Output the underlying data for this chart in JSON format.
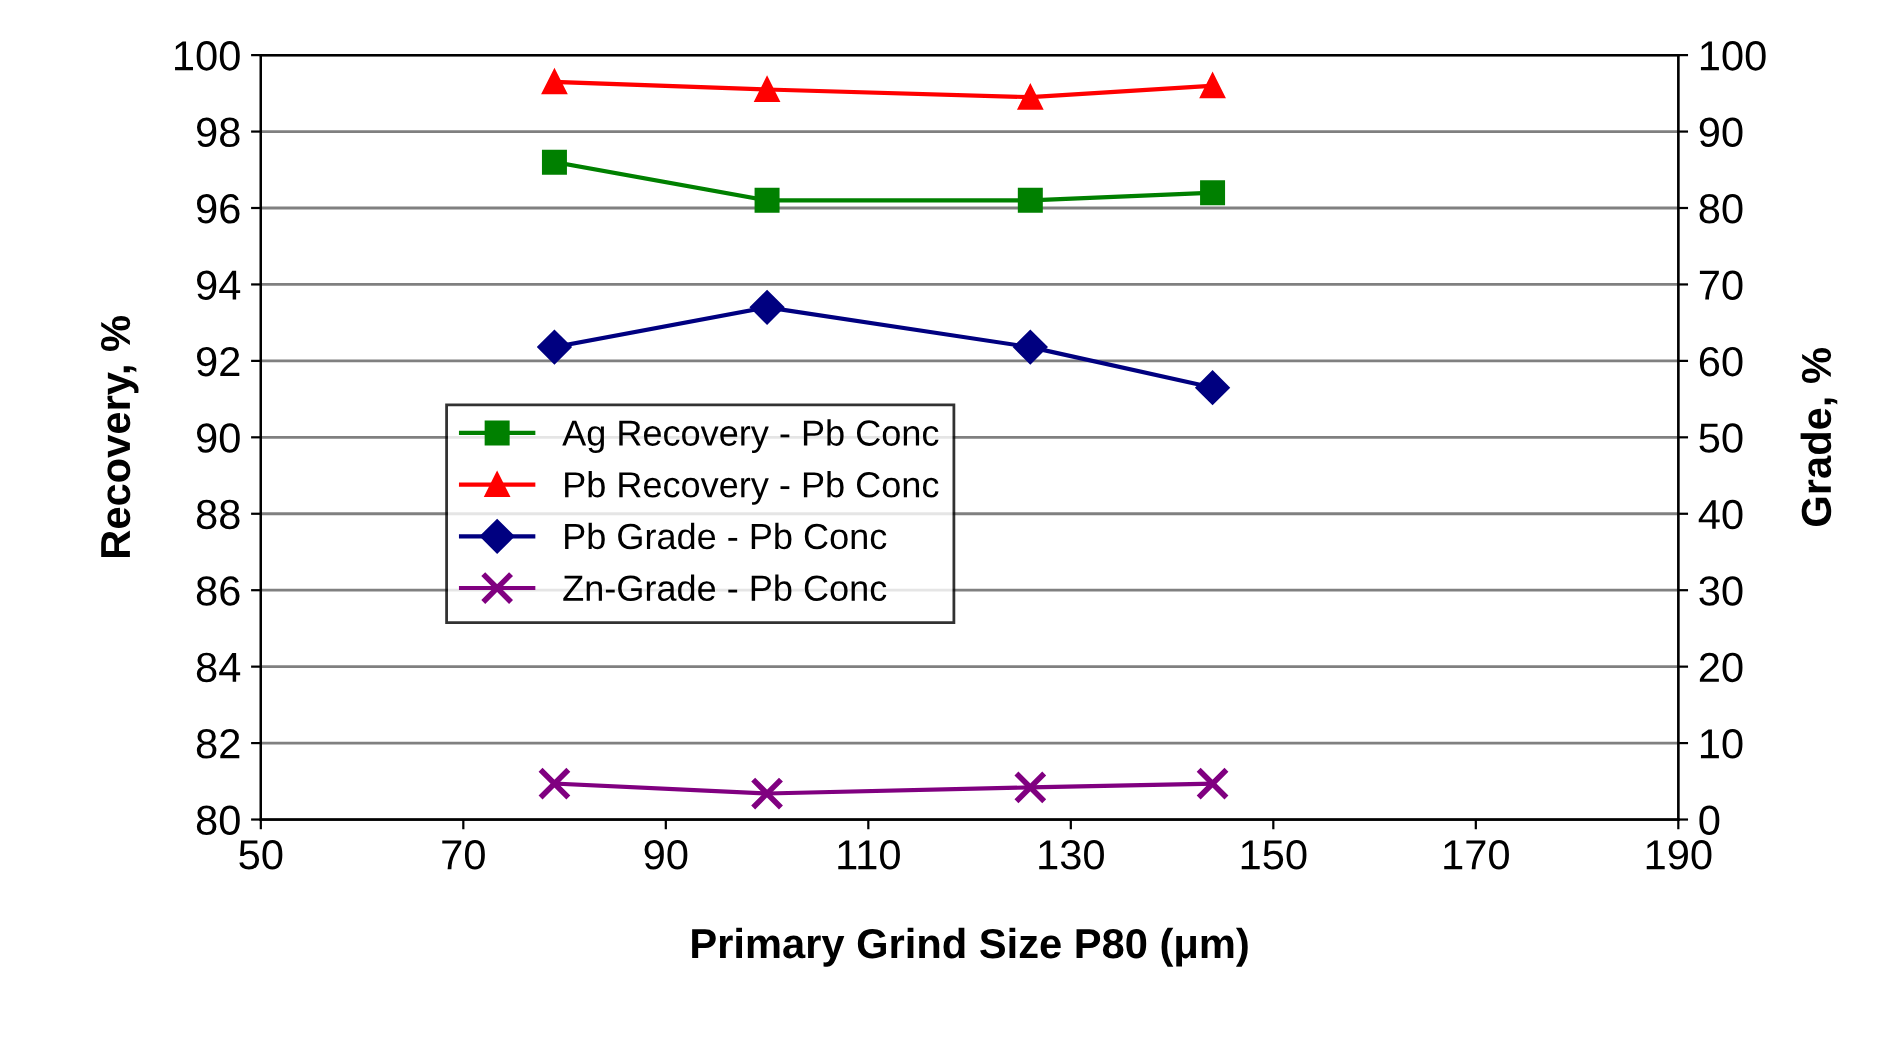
{
  "chart_data": {
    "type": "line",
    "xlabel": "Primary Grind Size P80 (μm)",
    "ylabel": "Recovery, %",
    "y2label": "Grade, %",
    "xlim": [
      50,
      190
    ],
    "xticks": [
      50,
      70,
      90,
      110,
      130,
      150,
      170,
      190
    ],
    "ylim": [
      80,
      100
    ],
    "yticks": [
      80,
      82,
      84,
      86,
      88,
      90,
      92,
      94,
      96,
      98,
      100
    ],
    "y2lim": [
      0,
      100
    ],
    "y2ticks": [
      0,
      10,
      20,
      30,
      40,
      50,
      60,
      70,
      80,
      90,
      100
    ],
    "grid": "y",
    "legend": "center",
    "x": [
      79,
      100,
      126,
      144
    ],
    "series": [
      {
        "name": "Ag Recovery - Pb Conc",
        "color": "#008000",
        "marker": "square",
        "values": [
          97.2,
          96.2,
          96.2,
          96.4
        ]
      },
      {
        "name": "Pb Recovery - Pb Conc",
        "color": "#ff0000",
        "marker": "triangle",
        "values": [
          99.3,
          99.1,
          98.9,
          99.2
        ]
      },
      {
        "name": "Pb Grade - Pb Conc",
        "color": "#000080",
        "marker": "diamond",
        "axis": "y2",
        "values": [
          61.8,
          67.0,
          61.8,
          56.5
        ]
      },
      {
        "name": "Zn-Grade - Pb Conc",
        "color": "#800080",
        "marker": "cross",
        "axis": "y2",
        "values": [
          4.7,
          3.4,
          4.2,
          4.7
        ]
      }
    ]
  }
}
